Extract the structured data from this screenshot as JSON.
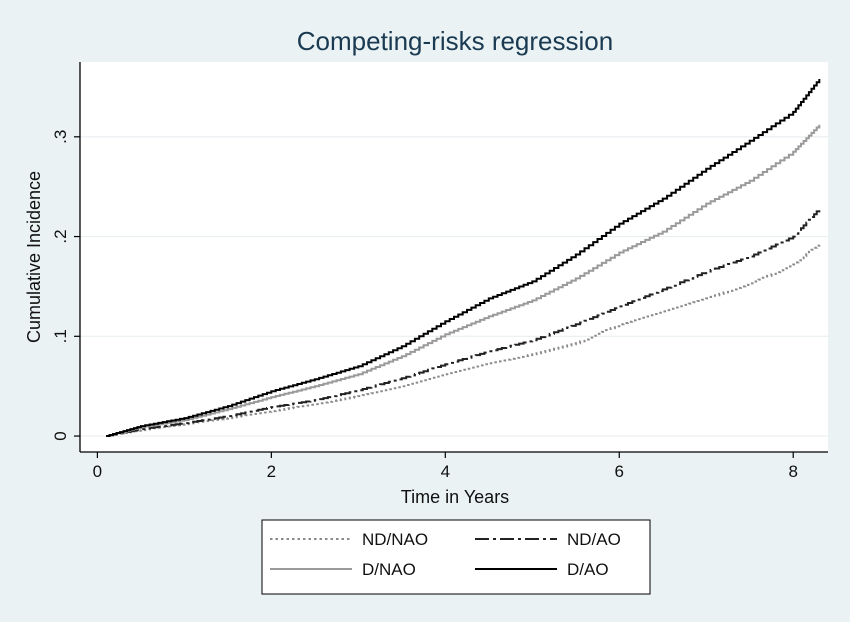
{
  "chart_data": {
    "type": "line",
    "title": "Competing-risks regression",
    "xlabel": "Time in Years",
    "ylabel": "Cumulative Incidence",
    "xlim": [
      -0.2,
      8.4
    ],
    "ylim": [
      -0.016,
      0.375
    ],
    "x_ticks": [
      0,
      2,
      4,
      6,
      8
    ],
    "x_tick_labels": [
      "0",
      "2",
      "4",
      "6",
      "8"
    ],
    "y_ticks": [
      0,
      0.1,
      0.2,
      0.3
    ],
    "y_tick_labels": [
      "0",
      ".1",
      ".2",
      ".3"
    ],
    "grid": true,
    "legend_position": "bottom",
    "series": [
      {
        "name": "ND/NAO",
        "style": "dotted",
        "color": "#8a8a8a",
        "x": [
          0.1,
          0.5,
          1,
          1.5,
          2,
          2.5,
          3,
          3.5,
          4,
          4.5,
          5,
          5.5,
          6,
          6.5,
          7,
          7.5,
          8,
          8.3
        ],
        "y": [
          0,
          0.006,
          0.012,
          0.018,
          0.025,
          0.032,
          0.04,
          0.05,
          0.062,
          0.073,
          0.082,
          0.093,
          0.112,
          0.125,
          0.138,
          0.153,
          0.172,
          0.193
        ]
      },
      {
        "name": "ND/AO",
        "style": "dashdot",
        "color": "#222222",
        "x": [
          0.1,
          0.5,
          1,
          1.5,
          2,
          2.5,
          3,
          3.5,
          4,
          4.5,
          5,
          5.5,
          6,
          6.5,
          7,
          7.5,
          8,
          8.3
        ],
        "y": [
          0,
          0.007,
          0.013,
          0.02,
          0.029,
          0.036,
          0.046,
          0.058,
          0.072,
          0.085,
          0.096,
          0.112,
          0.13,
          0.147,
          0.165,
          0.18,
          0.2,
          0.228
        ]
      },
      {
        "name": "D/NAO",
        "style": "solid",
        "color": "#9a9a9a",
        "x": [
          0.1,
          0.5,
          1,
          1.5,
          2,
          2.5,
          3,
          3.5,
          4,
          4.5,
          5,
          5.5,
          6,
          6.5,
          7,
          7.5,
          8,
          8.3
        ],
        "y": [
          0,
          0.009,
          0.016,
          0.027,
          0.039,
          0.05,
          0.062,
          0.08,
          0.102,
          0.12,
          0.136,
          0.158,
          0.184,
          0.205,
          0.233,
          0.256,
          0.285,
          0.312
        ]
      },
      {
        "name": "D/AO",
        "style": "solid",
        "color": "#000000",
        "x": [
          0.1,
          0.5,
          1,
          1.5,
          2,
          2.5,
          3,
          3.5,
          4,
          4.5,
          5,
          5.5,
          6,
          6.5,
          7,
          7.5,
          8,
          8.3
        ],
        "y": [
          0,
          0.01,
          0.018,
          0.03,
          0.045,
          0.057,
          0.07,
          0.09,
          0.115,
          0.138,
          0.155,
          0.182,
          0.213,
          0.238,
          0.268,
          0.296,
          0.325,
          0.358
        ]
      }
    ]
  }
}
